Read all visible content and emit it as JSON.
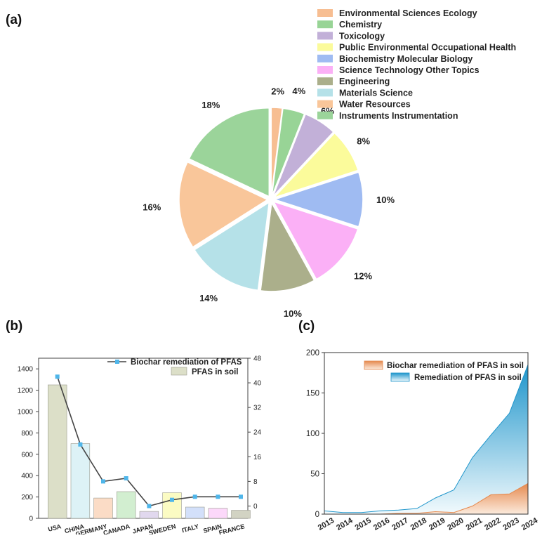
{
  "panels": {
    "a": "(a)",
    "b": "(b)",
    "c": "(c)"
  },
  "chart_data": [
    {
      "type": "pie",
      "panel": "(a)",
      "legend_position": "top-right",
      "slices": [
        {
          "label": "Environmental Sciences Ecology",
          "percent_label": "2%",
          "value": 2,
          "color": "#F7BE92"
        },
        {
          "label": "Chemistry",
          "percent_label": "4%",
          "value": 4,
          "color": "#98D496"
        },
        {
          "label": "Toxicology",
          "percent_label": "6%",
          "value": 6,
          "color": "#C2B0D8"
        },
        {
          "label": "Public Environmental Occupational Health",
          "percent_label": "8%",
          "value": 8,
          "color": "#FBFB9B"
        },
        {
          "label": "Biochemistry Molecular Biology",
          "percent_label": "10%",
          "value": 10,
          "color": "#9FBBF2"
        },
        {
          "label": "Science Technology Other Topics",
          "percent_label": "12%",
          "value": 12,
          "color": "#FBB0F6"
        },
        {
          "label": "Engineering",
          "percent_label": "10%",
          "value": 10,
          "color": "#ABAF8B"
        },
        {
          "label": "Materials Science",
          "percent_label": "14%",
          "value": 14,
          "color": "#B5E1E8"
        },
        {
          "label": "Water Resources",
          "percent_label": "16%",
          "value": 16,
          "color": "#F9C69A"
        },
        {
          "label": "Instruments Instrumentation",
          "percent_label": "18%",
          "value": 18,
          "color": "#9BD49A"
        }
      ]
    },
    {
      "type": "bar",
      "panel": "(b)",
      "categories": [
        "USA",
        "CHINA",
        "GERMANY",
        "CANADA",
        "JAPAN",
        "SWEDEN",
        "ITALY",
        "SPAIN",
        "FRANCE"
      ],
      "bar_colors": [
        "#DCDFC8",
        "#DDF2F6",
        "#FBDCC6",
        "#D2EED0",
        "#E1D8EE",
        "#FBFBC3",
        "#D3E0FA",
        "#FCD8FA",
        "#D2D3C3"
      ],
      "series": [
        {
          "name": "PFAS in soil",
          "kind": "bar",
          "axis": "left",
          "values": [
            1250,
            700,
            190,
            250,
            65,
            240,
            105,
            95,
            75
          ],
          "color": "#DCDFC8"
        },
        {
          "name": "Biochar remediation of PFAS",
          "kind": "line",
          "axis": "right",
          "values": [
            42,
            20,
            8,
            9,
            0,
            2,
            3,
            3,
            3
          ],
          "color": "#4FB6EA"
        }
      ],
      "ylim_left": [
        0,
        1500
      ],
      "yticks_left": [
        0,
        200,
        400,
        600,
        800,
        1000,
        1200,
        1400
      ],
      "ylim_right": [
        -4,
        48
      ],
      "yticks_right": [
        0,
        8,
        16,
        24,
        32,
        40,
        48
      ],
      "legend_position": "top-right"
    },
    {
      "type": "area",
      "panel": "(c)",
      "x": [
        "2013",
        "2014",
        "2015",
        "2016",
        "2017",
        "2018",
        "2019",
        "2020",
        "2021",
        "2022",
        "2023",
        "2024"
      ],
      "series": [
        {
          "name": "Biochar remediation of PFAS in soil",
          "values": [
            0,
            0,
            0,
            0,
            1,
            1,
            3,
            2,
            10,
            24,
            25,
            38
          ],
          "color": "#E5894E"
        },
        {
          "name": "Remediation of  PFAS in soil",
          "values": [
            4,
            2,
            2,
            4,
            5,
            7,
            20,
            30,
            70,
            98,
            125,
            185
          ],
          "color": "#1E95CB"
        }
      ],
      "ylim": [
        0,
        200
      ],
      "yticks": [
        0,
        50,
        100,
        150,
        200
      ],
      "legend_position": "top-left"
    }
  ]
}
